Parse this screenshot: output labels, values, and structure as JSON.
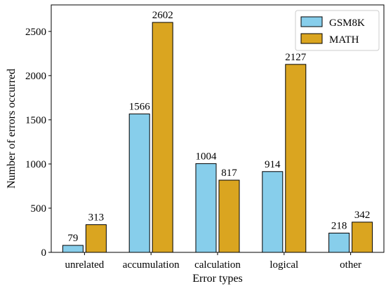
{
  "chart_data": {
    "type": "bar",
    "title": "",
    "xlabel": "Error types",
    "ylabel": "Number of errors occurred",
    "categories": [
      "unrelated",
      "accumulation",
      "calculation",
      "logical",
      "other"
    ],
    "series": [
      {
        "name": "GSM8K",
        "color": "#87ceeb",
        "values": [
          79,
          1566,
          1004,
          914,
          218
        ]
      },
      {
        "name": "MATH",
        "color": "#daa520",
        "values": [
          313,
          2602,
          817,
          2127,
          342
        ]
      }
    ],
    "ylim": [
      0,
      2800
    ],
    "yticks": [
      0,
      500,
      1000,
      1500,
      2000,
      2500
    ],
    "grid": false,
    "legend_position": "top-right",
    "data_labels": true
  }
}
